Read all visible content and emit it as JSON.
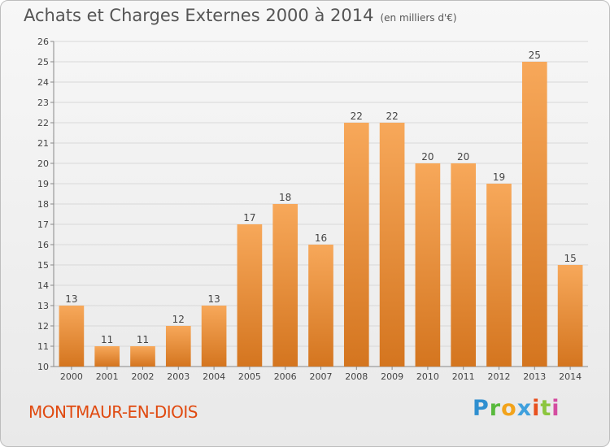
{
  "title": "Achats et Charges Externes 2000 à 2014",
  "unit": "(en milliers d'€)",
  "place": "MONTMAUR-EN-DIOIS",
  "logo": {
    "p": "P",
    "r": "r",
    "o": "o",
    "x": "x",
    "i": "i",
    "t": "t",
    "i2": "i"
  },
  "colors": {
    "bar_top": "#f7a85a",
    "bar_bottom": "#d4751f",
    "grid": "#d8d8d8",
    "place": "#e04a10"
  },
  "chart_data": {
    "type": "bar",
    "title": "Achats et Charges Externes 2000 à 2014",
    "xlabel": "",
    "ylabel": "",
    "categories": [
      "2000",
      "2001",
      "2002",
      "2003",
      "2004",
      "2005",
      "2006",
      "2007",
      "2008",
      "2009",
      "2010",
      "2011",
      "2012",
      "2013",
      "2014"
    ],
    "values": [
      13,
      11,
      11,
      12,
      13,
      17,
      18,
      16,
      22,
      22,
      20,
      20,
      19,
      25,
      15
    ],
    "ylim": [
      10,
      26
    ],
    "yticks": [
      10,
      11,
      12,
      13,
      14,
      15,
      16,
      17,
      18,
      19,
      20,
      21,
      22,
      23,
      24,
      25,
      26
    ],
    "grid": true,
    "data_labels": true
  }
}
